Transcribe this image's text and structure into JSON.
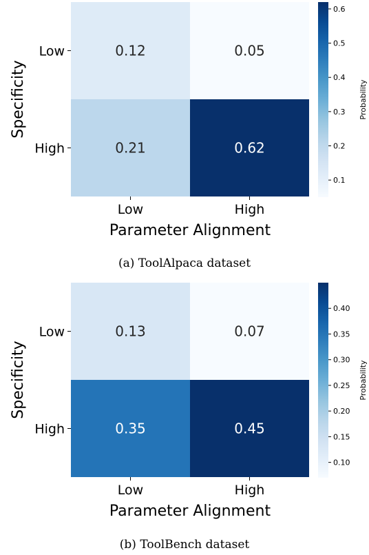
{
  "chart_data": [
    {
      "type": "heatmap",
      "caption": "(a) ToolAlpaca dataset",
      "xlabel": "Parameter Alignment",
      "ylabel": "Specificity",
      "x_categories": [
        "Low",
        "High"
      ],
      "y_categories": [
        "Low",
        "High"
      ],
      "values": [
        [
          0.12,
          0.05
        ],
        [
          0.21,
          0.62
        ]
      ],
      "value_labels": [
        [
          "0.12",
          "0.05"
        ],
        [
          "0.21",
          "0.62"
        ]
      ],
      "colorbar": {
        "label": "Probability",
        "range": [
          0.05,
          0.62
        ],
        "ticks": [
          0.1,
          0.2,
          0.3,
          0.4,
          0.5,
          0.6
        ],
        "tick_labels": [
          "0.1",
          "0.2",
          "0.3",
          "0.4",
          "0.5",
          "0.6"
        ]
      },
      "colormap": "Blues"
    },
    {
      "type": "heatmap",
      "caption": "(b) ToolBench dataset",
      "xlabel": "Parameter Alignment",
      "ylabel": "Specificity",
      "x_categories": [
        "Low",
        "High"
      ],
      "y_categories": [
        "Low",
        "High"
      ],
      "values": [
        [
          0.13,
          0.07
        ],
        [
          0.35,
          0.45
        ]
      ],
      "value_labels": [
        [
          "0.13",
          "0.07"
        ],
        [
          "0.35",
          "0.45"
        ]
      ],
      "colorbar": {
        "label": "Probability",
        "range": [
          0.07,
          0.45
        ],
        "ticks": [
          0.1,
          0.15,
          0.2,
          0.25,
          0.3,
          0.35,
          0.4
        ],
        "tick_labels": [
          "0.10",
          "0.15",
          "0.20",
          "0.25",
          "0.30",
          "0.35",
          "0.40"
        ]
      },
      "colormap": "Blues"
    }
  ]
}
